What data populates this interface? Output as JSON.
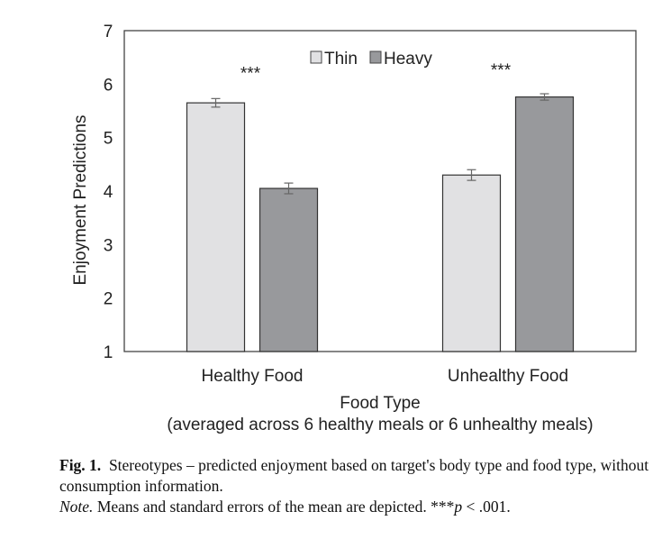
{
  "chart_data": {
    "type": "bar",
    "categories": [
      "Healthy Food",
      "Unhealthy Food"
    ],
    "series": [
      {
        "name": "Thin",
        "values": [
          5.65,
          4.3
        ],
        "errors": [
          0.08,
          0.1
        ],
        "color": "#e1e1e3"
      },
      {
        "name": "Heavy",
        "values": [
          4.05,
          5.76
        ],
        "errors": [
          0.1,
          0.06
        ],
        "color": "#98999c"
      }
    ],
    "annotations": [
      "***",
      "***"
    ],
    "xlabel": "Food Type",
    "xlabel_sub": "(averaged across 6 healthy meals or 6 unhealthy meals)",
    "ylabel": "Enjoyment Predictions",
    "ylim": [
      1,
      7
    ],
    "yticks": [
      "1",
      "2",
      "3",
      "4",
      "5",
      "6",
      "7"
    ],
    "grid": false,
    "legend": "top-center"
  },
  "caption": {
    "label": "Fig. 1.",
    "text": "Stereotypes – predicted enjoyment based on target's body type and food type, without consumption information.",
    "note_label": "Note.",
    "note_text": "Means and standard errors of the mean are depicted. ***",
    "note_p": "p",
    "note_tail": " < .001."
  }
}
